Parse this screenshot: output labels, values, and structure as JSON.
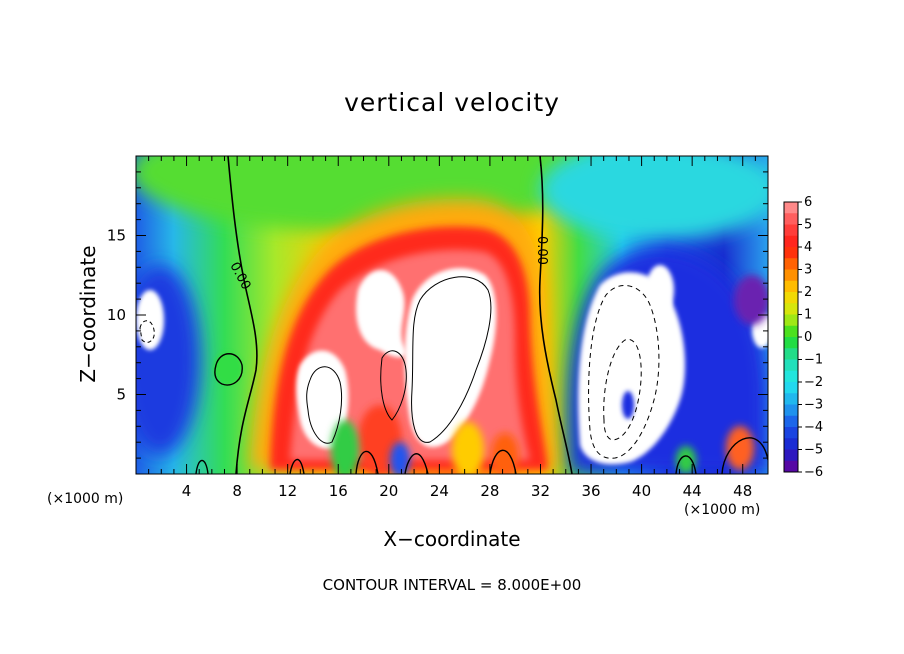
{
  "chart_data": {
    "type": "heatmap",
    "title": "vertical velocity",
    "xlabel": "X−coordinate",
    "ylabel": "Z−coordinate",
    "x_unit": "(×1000 m)",
    "y_unit": "(×1000 m)",
    "xlim": [
      0,
      50
    ],
    "ylim": [
      0,
      20
    ],
    "x_ticks": [
      4,
      8,
      12,
      16,
      20,
      24,
      28,
      32,
      36,
      40,
      44,
      48
    ],
    "x_tick_labels": [
      "4",
      "8",
      "12",
      "16",
      "20",
      "24",
      "28",
      "32",
      "36",
      "40",
      "44",
      "48"
    ],
    "y_ticks": [
      5,
      10,
      15
    ],
    "y_tick_labels": [
      "5",
      "10",
      "15"
    ],
    "colorbar": {
      "min": -6,
      "max": 6,
      "ticks": [
        6,
        5,
        4,
        3,
        2,
        1,
        0,
        -1,
        -2,
        -3,
        -4,
        -5,
        -6
      ],
      "tick_labels": [
        "6",
        "5",
        "4",
        "3",
        "2",
        "1",
        "0",
        "−1",
        "−2",
        "−3",
        "−4",
        "−5",
        "−6"
      ]
    },
    "contour_labels": [
      "0.00",
      "0.00"
    ],
    "contour_interval_text": "CONTOUR INTERVAL = 8.000E+00",
    "colormap_sentinel_note": null
  },
  "colors": {
    "updraft_saturated": "#ffffff",
    "downdraft_saturated": "#ffffff",
    "zero": "#22dd22",
    "positive_max": "#ff9e9e",
    "negative_max": "#6a0096"
  }
}
